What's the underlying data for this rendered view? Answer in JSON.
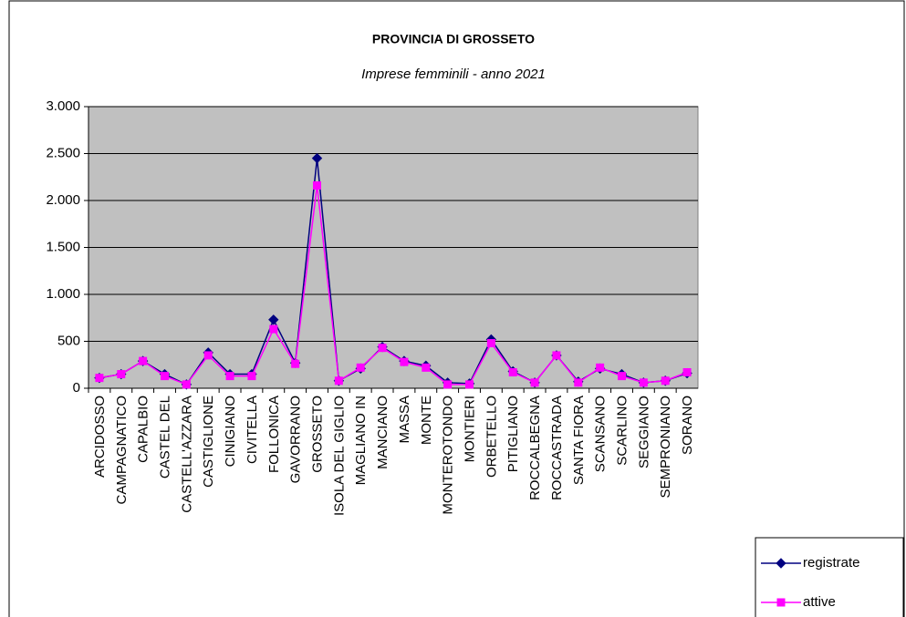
{
  "chart_data": {
    "type": "line",
    "title": "PROVINCIA DI GROSSETO",
    "subtitle": "Imprese femminili - anno 2021",
    "categories": [
      "ARCIDOSSO",
      "CAMPAGNATICO",
      "CAPALBIO",
      "CASTEL DEL",
      "CASTELL'AZZARA",
      "CASTIGLIONE",
      "CINIGIANO",
      "CIVITELLA",
      "FOLLONICA",
      "GAVORRANO",
      "GROSSETO",
      "ISOLA DEL GIGLIO",
      "MAGLIANO IN",
      "MANCIANO",
      "MASSA",
      "MONTE",
      "MONTEROTONDO",
      "MONTIERI",
      "ORBETELLO",
      "PITIGLIANO",
      "ROCCALBEGNA",
      "ROCCASTRADA",
      "SANTA FIORA",
      "SCANSANO",
      "SCARLINO",
      "SEGGIANO",
      "SEMPRONIANO",
      "SORANO"
    ],
    "series": [
      {
        "name": "registrate",
        "color": "#000080",
        "marker": "diamond",
        "values": [
          110,
          150,
          290,
          150,
          40,
          380,
          150,
          150,
          730,
          270,
          2450,
          80,
          210,
          440,
          290,
          240,
          60,
          50,
          520,
          180,
          60,
          350,
          70,
          210,
          150,
          60,
          80,
          160
        ]
      },
      {
        "name": "attive",
        "color": "#ff00ff",
        "marker": "square",
        "values": [
          110,
          150,
          290,
          130,
          40,
          350,
          130,
          130,
          630,
          260,
          2160,
          80,
          220,
          430,
          280,
          220,
          40,
          40,
          480,
          170,
          60,
          350,
          60,
          220,
          130,
          60,
          80,
          170
        ]
      }
    ],
    "ylim": [
      0,
      3000
    ],
    "yticks": [
      0,
      500,
      {
        "value": 1000,
        "label": "1.000"
      },
      {
        "value": 1500,
        "label": "1.500"
      },
      {
        "value": 2000,
        "label": "2.000"
      },
      {
        "value": 2500,
        "label": "2.500"
      },
      {
        "value": 3000,
        "label": "3.000"
      }
    ],
    "grid": true,
    "legend": "bottom-right"
  }
}
